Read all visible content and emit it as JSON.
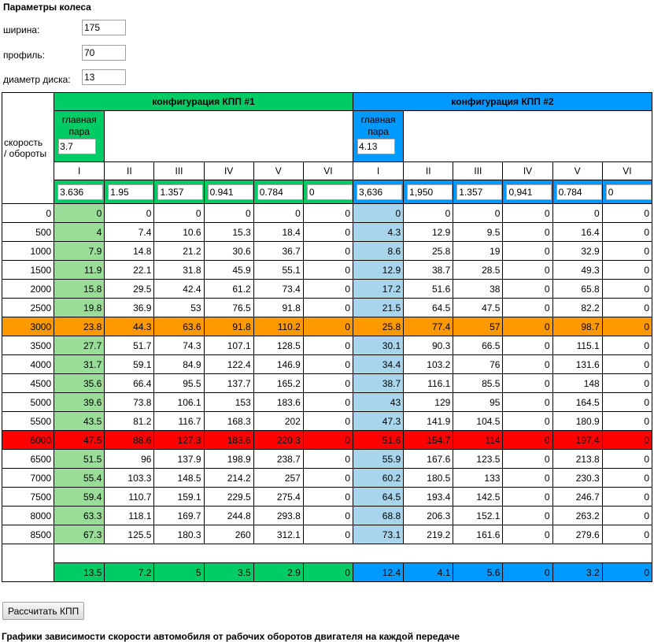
{
  "title": "Параметры колеса",
  "params": [
    {
      "label": "ширина:",
      "value": "175"
    },
    {
      "label": "профиль:",
      "value": "70"
    },
    {
      "label": "диаметр диска:",
      "value": "13"
    }
  ],
  "table": {
    "corner_label_1": "скорость",
    "corner_label_2": "/ обороты",
    "config1": {
      "header": "конфигурация КПП #1",
      "main_pair_label_1": "главная",
      "main_pair_label_2": "пара",
      "main_pair_value": "3.7",
      "gears": [
        "I",
        "II",
        "III",
        "IV",
        "V",
        "VI"
      ],
      "ratios": [
        "3.636",
        "1.95",
        "1.357",
        "0.941",
        "0.784",
        "0"
      ]
    },
    "config2": {
      "header": "конфигурация КПП #2",
      "main_pair_label_1": "главная",
      "main_pair_label_2": "пара",
      "main_pair_value": "4.13",
      "gears": [
        "I",
        "II",
        "III",
        "IV",
        "V",
        "VI"
      ],
      "ratios": [
        "3,636",
        "1,950",
        "1.357",
        "0,941",
        "0.784",
        "0"
      ]
    },
    "rows": [
      {
        "rpm": "0",
        "c1": [
          "0",
          "0",
          "0",
          "0",
          "0",
          "0"
        ],
        "c2": [
          "0",
          "0",
          "0",
          "0",
          "0",
          "0"
        ]
      },
      {
        "rpm": "500",
        "c1": [
          "4",
          "7.4",
          "10.6",
          "15.3",
          "18.4",
          "0"
        ],
        "c2": [
          "4.3",
          "12.9",
          "9.5",
          "0",
          "16.4",
          "0"
        ]
      },
      {
        "rpm": "1000",
        "c1": [
          "7.9",
          "14.8",
          "21.2",
          "30.6",
          "36.7",
          "0"
        ],
        "c2": [
          "8.6",
          "25.8",
          "19",
          "0",
          "32.9",
          "0"
        ]
      },
      {
        "rpm": "1500",
        "c1": [
          "11.9",
          "22.1",
          "31.8",
          "45.9",
          "55.1",
          "0"
        ],
        "c2": [
          "12.9",
          "38.7",
          "28.5",
          "0",
          "49.3",
          "0"
        ]
      },
      {
        "rpm": "2000",
        "c1": [
          "15.8",
          "29.5",
          "42.4",
          "61.2",
          "73.4",
          "0"
        ],
        "c2": [
          "17.2",
          "51.6",
          "38",
          "0",
          "65.8",
          "0"
        ]
      },
      {
        "rpm": "2500",
        "c1": [
          "19.8",
          "36.9",
          "53",
          "76.5",
          "91.8",
          "0"
        ],
        "c2": [
          "21.5",
          "64.5",
          "47.5",
          "0",
          "82.2",
          "0"
        ]
      },
      {
        "rpm": "3000",
        "c1": [
          "23.8",
          "44.3",
          "63.6",
          "91.8",
          "110.2",
          "0"
        ],
        "c2": [
          "25.8",
          "77.4",
          "57",
          "0",
          "98.7",
          "0"
        ]
      },
      {
        "rpm": "3500",
        "c1": [
          "27.7",
          "51.7",
          "74.3",
          "107.1",
          "128.5",
          "0"
        ],
        "c2": [
          "30.1",
          "90.3",
          "66.5",
          "0",
          "115.1",
          "0"
        ]
      },
      {
        "rpm": "4000",
        "c1": [
          "31.7",
          "59.1",
          "84.9",
          "122.4",
          "146.9",
          "0"
        ],
        "c2": [
          "34.4",
          "103.2",
          "76",
          "0",
          "131.6",
          "0"
        ]
      },
      {
        "rpm": "4500",
        "c1": [
          "35.6",
          "66.4",
          "95.5",
          "137.7",
          "165.2",
          "0"
        ],
        "c2": [
          "38.7",
          "116.1",
          "85.5",
          "0",
          "148",
          "0"
        ]
      },
      {
        "rpm": "5000",
        "c1": [
          "39.6",
          "73.8",
          "106.1",
          "153",
          "183.6",
          "0"
        ],
        "c2": [
          "43",
          "129",
          "95",
          "0",
          "164.5",
          "0"
        ]
      },
      {
        "rpm": "5500",
        "c1": [
          "43.5",
          "81.2",
          "116.7",
          "168.3",
          "202",
          "0"
        ],
        "c2": [
          "47.3",
          "141.9",
          "104.5",
          "0",
          "180.9",
          "0"
        ]
      },
      {
        "rpm": "6000",
        "c1": [
          "47.5",
          "88.6",
          "127.3",
          "183.6",
          "220.3",
          "0"
        ],
        "c2": [
          "51.6",
          "154.7",
          "114",
          "0",
          "197.4",
          "0"
        ]
      },
      {
        "rpm": "6500",
        "c1": [
          "51.5",
          "96",
          "137.9",
          "198.9",
          "238.7",
          "0"
        ],
        "c2": [
          "55.9",
          "167.6",
          "123.5",
          "0",
          "213.8",
          "0"
        ]
      },
      {
        "rpm": "7000",
        "c1": [
          "55.4",
          "103.3",
          "148.5",
          "214.2",
          "257",
          "0"
        ],
        "c2": [
          "60.2",
          "180.5",
          "133",
          "0",
          "230.3",
          "0"
        ]
      },
      {
        "rpm": "7500",
        "c1": [
          "59.4",
          "110.7",
          "159.1",
          "229.5",
          "275.4",
          "0"
        ],
        "c2": [
          "64.5",
          "193.4",
          "142.5",
          "0",
          "246.7",
          "0"
        ]
      },
      {
        "rpm": "8000",
        "c1": [
          "63.3",
          "118.1",
          "169.7",
          "244.8",
          "293.8",
          "0"
        ],
        "c2": [
          "68.8",
          "206.3",
          "152.1",
          "0",
          "263.2",
          "0"
        ]
      },
      {
        "rpm": "8500",
        "c1": [
          "67.3",
          "125.5",
          "180.3",
          "260",
          "312.1",
          "0"
        ],
        "c2": [
          "73.1",
          "219.2",
          "161.6",
          "0",
          "279.6",
          "0"
        ]
      }
    ],
    "highlight": {
      "orange_rpm": "3000",
      "red_rpm": "6000"
    },
    "footer": {
      "c1": [
        "13.5",
        "7.2",
        "5",
        "3.5",
        "2.9",
        "0"
      ],
      "c2": [
        "12.4",
        "4.1",
        "5.6",
        "0",
        "3.2",
        "0"
      ]
    }
  },
  "calc_button": "Рассчитать КПП",
  "bottom_text": "Графики зависимости скорости автомобиля от рабочих оборотов двигателя на каждой передаче",
  "colors": {
    "green": "#00cc66",
    "blue": "#0099ff",
    "light_green": "#99dd99",
    "light_blue": "#a8d4ec",
    "orange": "#ff9900",
    "red": "#ff0000"
  }
}
